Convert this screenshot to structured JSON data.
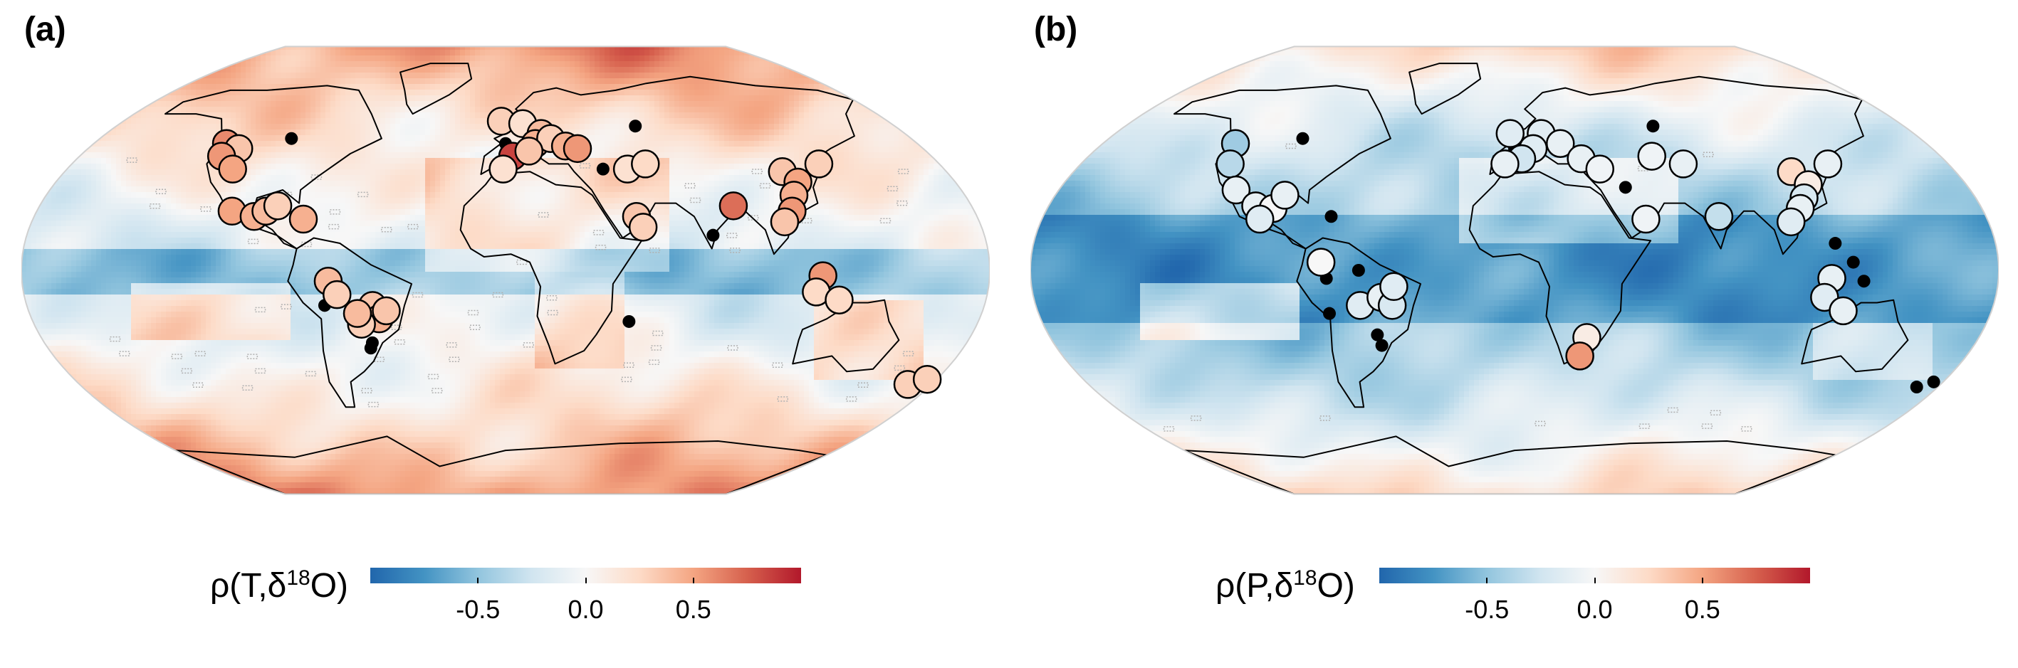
{
  "panels": [
    {
      "id": "a",
      "label": "(a)",
      "colorbar_title_prefix": "ρ(T,δ",
      "colorbar_title_sup": "18",
      "colorbar_title_suffix": "O)",
      "pattern": "temperature"
    },
    {
      "id": "b",
      "label": "(b)",
      "colorbar_title_prefix": "ρ(P,δ",
      "colorbar_title_sup": "18",
      "colorbar_title_suffix": "O)",
      "pattern": "precipitation"
    }
  ],
  "colorbar": {
    "ticks": [
      {
        "value": -0.5,
        "label": "-0.5"
      },
      {
        "value": 0.0,
        "label": "0.0"
      },
      {
        "value": 0.5,
        "label": "0.5"
      }
    ],
    "range": [
      -1,
      1
    ],
    "colors": [
      "#2166ac",
      "#4393c3",
      "#92c5de",
      "#d1e5f0",
      "#f7f7f7",
      "#fddbc7",
      "#f4a582",
      "#d6604d",
      "#b2182b"
    ]
  },
  "chart_data": [
    {
      "type": "heatmap",
      "panel": "a",
      "title": "",
      "colorbar_label": "ρ(T,δ18O)",
      "stations": [
        {
          "lon": -122,
          "lat": 48,
          "v": 0.6
        },
        {
          "lon": -115,
          "lat": 46,
          "v": 0.35
        },
        {
          "lon": -120,
          "lat": 43,
          "v": 0.55
        },
        {
          "lon": -112,
          "lat": 38,
          "v": 0.5
        },
        {
          "lon": -105,
          "lat": 22,
          "v": 0.5
        },
        {
          "lon": -96,
          "lat": 20,
          "v": 0.45
        },
        {
          "lon": -92,
          "lat": 22,
          "v": 0.4
        },
        {
          "lon": -88,
          "lat": 24,
          "v": 0.3
        },
        {
          "lon": -77,
          "lat": 19,
          "v": 0.45
        },
        {
          "lon": -66,
          "lat": -4,
          "v": 0.4
        },
        {
          "lon": -63,
          "lat": -9,
          "v": 0.3
        },
        {
          "lon": -50,
          "lat": -13,
          "v": 0.35
        },
        {
          "lon": -48,
          "lat": -18,
          "v": 0.45
        },
        {
          "lon": -45,
          "lat": -15,
          "v": 0.35
        },
        {
          "lon": -55,
          "lat": -20,
          "v": 0.3
        },
        {
          "lon": -56,
          "lat": -16,
          "v": 0.4
        },
        {
          "lon": -2,
          "lat": 57,
          "v": 0.3
        },
        {
          "lon": 8,
          "lat": 56,
          "v": 0.2
        },
        {
          "lon": 16,
          "lat": 52,
          "v": 0.4
        },
        {
          "lon": 13,
          "lat": 48,
          "v": 0.45
        },
        {
          "lon": 20,
          "lat": 50,
          "v": 0.3
        },
        {
          "lon": 26,
          "lat": 47,
          "v": 0.45
        },
        {
          "lon": 31,
          "lat": 46,
          "v": 0.55
        },
        {
          "lon": 3,
          "lat": 43,
          "v": 0.85
        },
        {
          "lon": -1,
          "lat": 38,
          "v": 0.2
        },
        {
          "lon": 10,
          "lat": 45,
          "v": 0.35
        },
        {
          "lon": 50,
          "lat": 38,
          "v": 0.2
        },
        {
          "lon": 58,
          "lat": 40,
          "v": 0.25
        },
        {
          "lon": 50,
          "lat": 20,
          "v": 0.35
        },
        {
          "lon": 52,
          "lat": 16,
          "v": 0.3
        },
        {
          "lon": 88,
          "lat": 24,
          "v": 0.7
        },
        {
          "lon": 113,
          "lat": 37,
          "v": 0.35
        },
        {
          "lon": 117,
          "lat": 33,
          "v": 0.5
        },
        {
          "lon": 113,
          "lat": 28,
          "v": 0.45
        },
        {
          "lon": 110,
          "lat": 22,
          "v": 0.55
        },
        {
          "lon": 106,
          "lat": 18,
          "v": 0.35
        },
        {
          "lon": 130,
          "lat": 40,
          "v": 0.3
        },
        {
          "lon": 118,
          "lat": -2,
          "v": 0.55
        },
        {
          "lon": 116,
          "lat": -8,
          "v": 0.25
        },
        {
          "lon": 125,
          "lat": -11,
          "v": 0.25
        },
        {
          "lon": 170,
          "lat": -43,
          "v": 0.3
        },
        {
          "lon": 176,
          "lat": -41,
          "v": 0.3
        }
      ],
      "missing_stations": [
        {
          "lon": -95,
          "lat": 50
        },
        {
          "lon": -68,
          "lat": -13
        },
        {
          "lon": -52,
          "lat": -27
        },
        {
          "lon": -53,
          "lat": -29
        },
        {
          "lon": 0,
          "lat": 48
        },
        {
          "lon": 0,
          "lat": 42
        },
        {
          "lon": 60,
          "lat": 55
        },
        {
          "lon": 40,
          "lat": 38
        },
        {
          "lon": 78,
          "lat": 13
        },
        {
          "lon": 47,
          "lat": -19
        }
      ]
    },
    {
      "type": "heatmap",
      "panel": "b",
      "title": "",
      "colorbar_label": "ρ(P,δ18O)",
      "stations": [
        {
          "lon": -122,
          "lat": 48,
          "v": -0.45
        },
        {
          "lon": -118,
          "lat": 40,
          "v": -0.35
        },
        {
          "lon": -110,
          "lat": 30,
          "v": -0.1
        },
        {
          "lon": -100,
          "lat": 24,
          "v": -0.1
        },
        {
          "lon": -93,
          "lat": 23,
          "v": 0.0
        },
        {
          "lon": -90,
          "lat": 28,
          "v": -0.1
        },
        {
          "lon": -97,
          "lat": 19,
          "v": -0.15
        },
        {
          "lon": -72,
          "lat": 3,
          "v": 0.0
        },
        {
          "lon": -58,
          "lat": -13,
          "v": -0.15
        },
        {
          "lon": -50,
          "lat": -10,
          "v": -0.1
        },
        {
          "lon": -46,
          "lat": -13,
          "v": -0.2
        },
        {
          "lon": -45,
          "lat": -6,
          "v": -0.15
        },
        {
          "lon": 28,
          "lat": -25,
          "v": 0.1
        },
        {
          "lon": 26,
          "lat": -32,
          "v": 0.55
        },
        {
          "lon": -2,
          "lat": 52,
          "v": -0.15
        },
        {
          "lon": 12,
          "lat": 52,
          "v": -0.15
        },
        {
          "lon": 20,
          "lat": 48,
          "v": -0.1
        },
        {
          "lon": 8,
          "lat": 46,
          "v": -0.15
        },
        {
          "lon": 3,
          "lat": 42,
          "v": -0.25
        },
        {
          "lon": -4,
          "lat": 40,
          "v": -0.1
        },
        {
          "lon": 28,
          "lat": 42,
          "v": -0.1
        },
        {
          "lon": 35,
          "lat": 38,
          "v": -0.05
        },
        {
          "lon": 58,
          "lat": 43,
          "v": -0.05
        },
        {
          "lon": 70,
          "lat": 40,
          "v": -0.1
        },
        {
          "lon": 50,
          "lat": 19,
          "v": -0.05
        },
        {
          "lon": 78,
          "lat": 20,
          "v": -0.3
        },
        {
          "lon": 113,
          "lat": 37,
          "v": 0.25
        },
        {
          "lon": 117,
          "lat": 32,
          "v": 0.1
        },
        {
          "lon": 113,
          "lat": 27,
          "v": -0.2
        },
        {
          "lon": 110,
          "lat": 23,
          "v": -0.1
        },
        {
          "lon": 105,
          "lat": 18,
          "v": -0.15
        },
        {
          "lon": 130,
          "lat": 40,
          "v": -0.1
        },
        {
          "lon": 118,
          "lat": -3,
          "v": -0.1
        },
        {
          "lon": 116,
          "lat": -10,
          "v": -0.15
        },
        {
          "lon": 124,
          "lat": -15,
          "v": -0.1
        }
      ],
      "missing_stations": [
        {
          "lon": -125,
          "lat": 50
        },
        {
          "lon": -94,
          "lat": 50
        },
        {
          "lon": -70,
          "lat": 20
        },
        {
          "lon": -70,
          "lat": -3
        },
        {
          "lon": -70,
          "lat": -16
        },
        {
          "lon": -58,
          "lat": 0
        },
        {
          "lon": -53,
          "lat": -24
        },
        {
          "lon": -52,
          "lat": -28
        },
        {
          "lon": -2,
          "lat": 50
        },
        {
          "lon": 0,
          "lat": 46
        },
        {
          "lon": 4,
          "lat": 48
        },
        {
          "lon": 64,
          "lat": 55
        },
        {
          "lon": 44,
          "lat": 31
        },
        {
          "lon": 120,
          "lat": 10
        },
        {
          "lon": 126,
          "lat": 3
        },
        {
          "lon": 130,
          "lat": -4
        },
        {
          "lon": 171,
          "lat": -44
        },
        {
          "lon": 176,
          "lat": -42
        }
      ]
    }
  ]
}
